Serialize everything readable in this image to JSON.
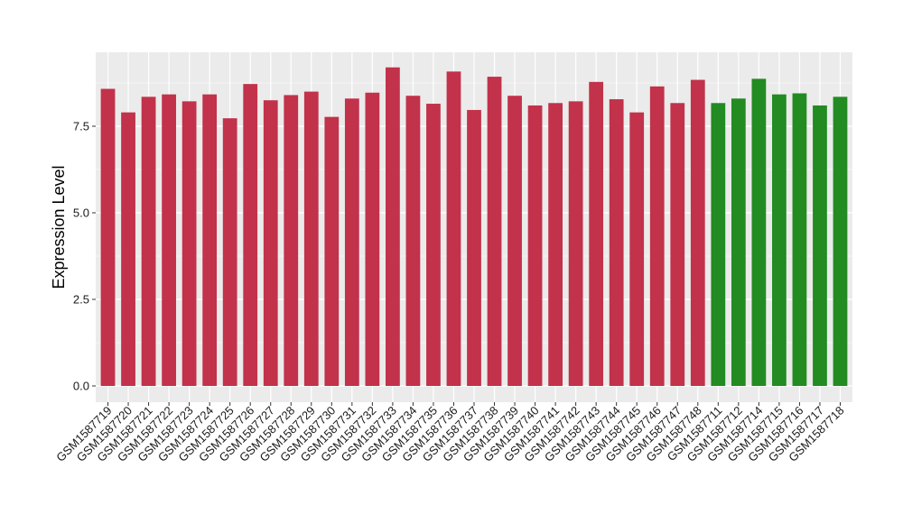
{
  "chart_data": {
    "type": "bar",
    "title": "",
    "xlabel": "",
    "ylabel": "Expression Level",
    "ylim": [
      0,
      9.5
    ],
    "yticks": [
      0.0,
      2.5,
      5.0,
      7.5
    ],
    "ytick_labels": [
      "0.0",
      "2.5",
      "5.0",
      "7.5"
    ],
    "grid": true,
    "legend": "none",
    "colors": {
      "group_a": "#C2324A",
      "group_b": "#228B22",
      "panel": "#EBEBEB",
      "gridline": "#FFFFFF"
    },
    "categories": [
      "GSM1587719",
      "GSM1587720",
      "GSM1587721",
      "GSM1587722",
      "GSM1587723",
      "GSM1587724",
      "GSM1587725",
      "GSM1587726",
      "GSM1587727",
      "GSM1587728",
      "GSM1587729",
      "GSM1587730",
      "GSM1587731",
      "GSM1587732",
      "GSM1587733",
      "GSM1587734",
      "GSM1587735",
      "GSM1587736",
      "GSM1587737",
      "GSM1587738",
      "GSM1587739",
      "GSM1587740",
      "GSM1587741",
      "GSM1587742",
      "GSM1587743",
      "GSM1587744",
      "GSM1587745",
      "GSM1587746",
      "GSM1587747",
      "GSM1587748",
      "GSM1587711",
      "GSM1587712",
      "GSM1587714",
      "GSM1587715",
      "GSM1587716",
      "GSM1587717",
      "GSM1587718"
    ],
    "values": [
      8.58,
      7.9,
      8.35,
      8.42,
      8.22,
      8.42,
      7.73,
      8.72,
      8.25,
      8.4,
      8.5,
      7.77,
      8.3,
      8.47,
      9.2,
      8.38,
      8.15,
      9.08,
      7.97,
      8.93,
      8.38,
      8.1,
      8.17,
      8.22,
      8.78,
      8.28,
      7.9,
      8.65,
      8.17,
      8.84,
      8.17,
      8.3,
      8.87,
      8.42,
      8.45,
      8.1,
      8.35
    ],
    "groups": [
      "a",
      "a",
      "a",
      "a",
      "a",
      "a",
      "a",
      "a",
      "a",
      "a",
      "a",
      "a",
      "a",
      "a",
      "a",
      "a",
      "a",
      "a",
      "a",
      "a",
      "a",
      "a",
      "a",
      "a",
      "a",
      "a",
      "a",
      "a",
      "a",
      "a",
      "b",
      "b",
      "b",
      "b",
      "b",
      "b",
      "b"
    ]
  }
}
